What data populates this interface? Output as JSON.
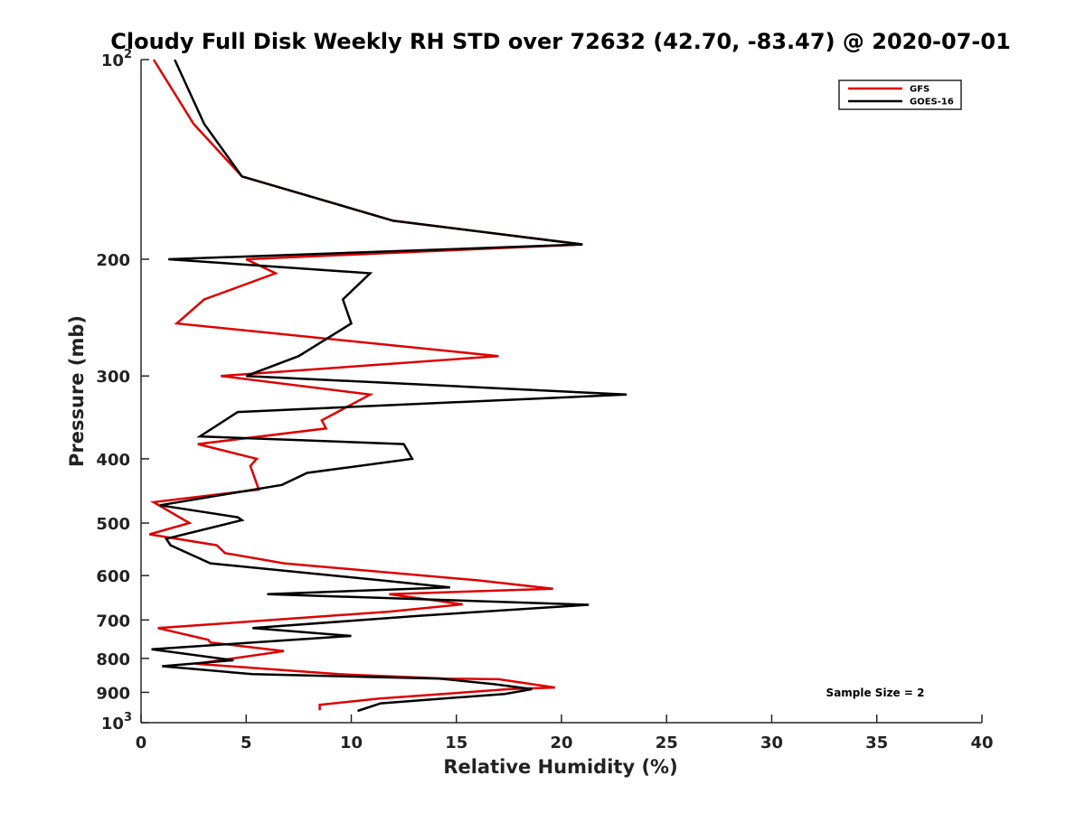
{
  "chart_data": {
    "type": "line",
    "title": "Cloudy Full Disk Weekly RH STD over 72632 (42.70, -83.47) @ 2020-07-01",
    "xlabel": "Relative Humidity (%)",
    "ylabel": "Pressure (mb)",
    "xlim": [
      0,
      40
    ],
    "ylim": [
      100,
      1000
    ],
    "y_scale": "log",
    "y_reversed": true,
    "x_ticks": [
      0,
      5,
      10,
      15,
      20,
      25,
      30,
      35,
      40
    ],
    "y_ticks": [
      {
        "value": 100,
        "base": "10",
        "exp": "2"
      },
      {
        "value": 200,
        "label": "200"
      },
      {
        "value": 300,
        "label": "300"
      },
      {
        "value": 400,
        "label": "400"
      },
      {
        "value": 500,
        "label": "500"
      },
      {
        "value": 600,
        "label": "600"
      },
      {
        "value": 700,
        "label": "700"
      },
      {
        "value": 800,
        "label": "800"
      },
      {
        "value": 900,
        "label": "900"
      },
      {
        "value": 1000,
        "base": "10",
        "exp": "3"
      }
    ],
    "grid": false,
    "legend_position": "top-right",
    "annotation": "Sample Size = 2",
    "series": [
      {
        "name": "GFS",
        "color": "#dd0000",
        "points": [
          [
            0.6,
            100
          ],
          [
            2.5,
            125
          ],
          [
            4.8,
            150
          ],
          [
            12,
            175
          ],
          [
            21,
            190
          ],
          [
            5,
            200
          ],
          [
            6.4,
            210
          ],
          [
            3,
            230
          ],
          [
            1.7,
            250
          ],
          [
            17,
            280
          ],
          [
            3.8,
            300
          ],
          [
            10.9,
            320
          ],
          [
            8.6,
            350
          ],
          [
            8.8,
            360
          ],
          [
            2.7,
            380
          ],
          [
            5.5,
            400
          ],
          [
            5.2,
            410
          ],
          [
            5.6,
            445
          ],
          [
            0.6,
            465
          ],
          [
            2.3,
            500
          ],
          [
            0.4,
            520
          ],
          [
            3.6,
            540
          ],
          [
            4,
            555
          ],
          [
            6.8,
            575
          ],
          [
            16,
            610
          ],
          [
            19.6,
            628
          ],
          [
            11.8,
            640
          ],
          [
            15.3,
            663
          ],
          [
            11.8,
            680
          ],
          [
            0.8,
            720
          ],
          [
            3.2,
            750
          ],
          [
            3.3,
            757
          ],
          [
            6.8,
            780
          ],
          [
            2.6,
            815
          ],
          [
            9.4,
            845
          ],
          [
            14.5,
            858
          ],
          [
            17,
            860
          ],
          [
            19.7,
            885
          ],
          [
            17.5,
            890
          ],
          [
            11.3,
            920
          ],
          [
            8.5,
            940
          ],
          [
            8.5,
            958
          ]
        ]
      },
      {
        "name": "GOES-16",
        "color": "#000000",
        "points": [
          [
            1.6,
            100
          ],
          [
            3,
            125
          ],
          [
            4.8,
            150
          ],
          [
            12,
            175
          ],
          [
            21,
            190
          ],
          [
            1.3,
            200
          ],
          [
            10.9,
            210
          ],
          [
            9.6,
            230
          ],
          [
            10,
            250
          ],
          [
            7.5,
            280
          ],
          [
            5,
            300
          ],
          [
            23.1,
            320
          ],
          [
            4.6,
            340
          ],
          [
            2.8,
            370
          ],
          [
            12.5,
            380
          ],
          [
            12.9,
            400
          ],
          [
            7.9,
            420
          ],
          [
            6.7,
            438
          ],
          [
            0.9,
            470
          ],
          [
            4.6,
            490
          ],
          [
            4.8,
            495
          ],
          [
            1.2,
            528
          ],
          [
            1.4,
            540
          ],
          [
            3.3,
            575
          ],
          [
            11.4,
            610
          ],
          [
            14.7,
            625
          ],
          [
            6,
            640
          ],
          [
            21.3,
            664
          ],
          [
            13.2,
            690
          ],
          [
            5.3,
            720
          ],
          [
            10,
            740
          ],
          [
            0.5,
            775
          ],
          [
            4.4,
            805
          ],
          [
            1,
            822
          ],
          [
            5.3,
            845
          ],
          [
            14.2,
            858
          ],
          [
            16.8,
            875
          ],
          [
            18.6,
            890
          ],
          [
            17.3,
            905
          ],
          [
            11.4,
            935
          ],
          [
            10.3,
            960
          ]
        ]
      }
    ]
  }
}
